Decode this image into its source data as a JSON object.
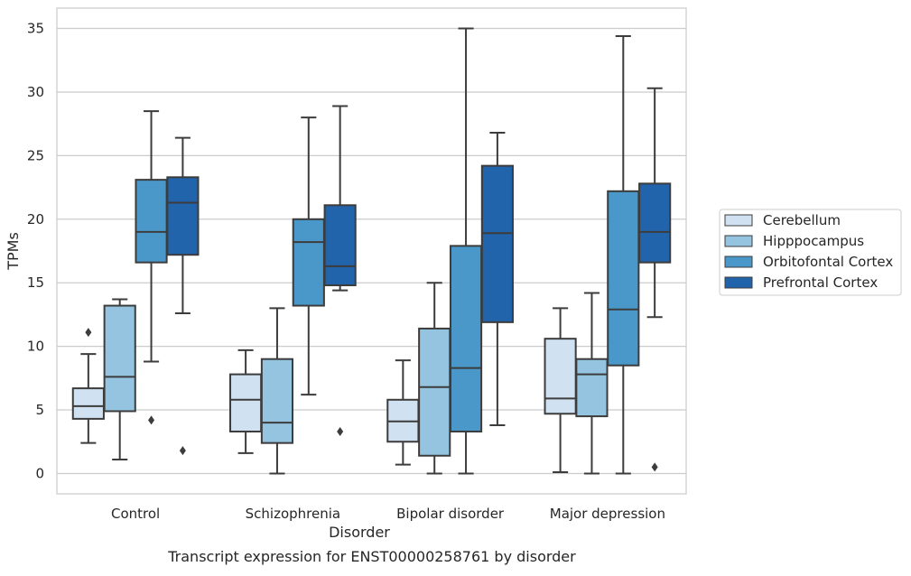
{
  "chart_data": {
    "type": "box",
    "caption": "Transcript expression for ENST00000258761 by disorder",
    "xlabel": "Disorder",
    "ylabel": "TPMs",
    "ylim": [
      -1.6,
      36.6
    ],
    "yticks": [
      0,
      5,
      10,
      15,
      20,
      25,
      30,
      35
    ],
    "grid": "horizontal",
    "legend_position": "right",
    "categories": [
      "Control",
      "Schizophrenia",
      "Bipolar disorder",
      "Major depression"
    ],
    "series": [
      {
        "name": "Cerebellum",
        "color": "#d0e1f2",
        "boxes": [
          {
            "whislo": 2.4,
            "q1": 4.3,
            "med": 5.3,
            "q3": 6.7,
            "whishi": 9.4,
            "fliers": [
              11.1
            ]
          },
          {
            "whislo": 1.6,
            "q1": 3.3,
            "med": 5.8,
            "q3": 7.8,
            "whishi": 9.7,
            "fliers": []
          },
          {
            "whislo": 0.7,
            "q1": 2.5,
            "med": 4.1,
            "q3": 5.8,
            "whishi": 8.9,
            "fliers": []
          },
          {
            "whislo": 0.1,
            "q1": 4.7,
            "med": 5.9,
            "q3": 10.6,
            "whishi": 13.0,
            "fliers": []
          }
        ]
      },
      {
        "name": "Hipppocampus",
        "color": "#94c4df",
        "boxes": [
          {
            "whislo": 1.1,
            "q1": 4.9,
            "med": 7.6,
            "q3": 13.2,
            "whishi": 13.7,
            "fliers": []
          },
          {
            "whislo": 0.0,
            "q1": 2.4,
            "med": 4.0,
            "q3": 9.0,
            "whishi": 13.0,
            "fliers": []
          },
          {
            "whislo": 0.0,
            "q1": 1.4,
            "med": 6.8,
            "q3": 11.4,
            "whishi": 15.0,
            "fliers": []
          },
          {
            "whislo": 0.0,
            "q1": 4.5,
            "med": 7.8,
            "q3": 9.0,
            "whishi": 14.2,
            "fliers": []
          }
        ]
      },
      {
        "name": "Orbitofontal Cortex",
        "color": "#4a98c9",
        "boxes": [
          {
            "whislo": 8.8,
            "q1": 16.6,
            "med": 19.0,
            "q3": 23.1,
            "whishi": 28.5,
            "fliers": [
              4.2
            ]
          },
          {
            "whislo": 6.2,
            "q1": 13.2,
            "med": 18.2,
            "q3": 20.0,
            "whishi": 28.0,
            "fliers": []
          },
          {
            "whislo": 0.0,
            "q1": 3.3,
            "med": 8.3,
            "q3": 17.9,
            "whishi": 35.0,
            "fliers": []
          },
          {
            "whislo": 0.0,
            "q1": 8.5,
            "med": 12.9,
            "q3": 22.2,
            "whishi": 34.4,
            "fliers": []
          }
        ]
      },
      {
        "name": "Prefrontal Cortex",
        "color": "#2264ab",
        "boxes": [
          {
            "whislo": 12.6,
            "q1": 17.2,
            "med": 21.3,
            "q3": 23.3,
            "whishi": 26.4,
            "fliers": [
              1.8
            ]
          },
          {
            "whislo": 14.4,
            "q1": 14.8,
            "med": 16.3,
            "q3": 21.1,
            "whishi": 28.9,
            "fliers": [
              3.3
            ]
          },
          {
            "whislo": 3.8,
            "q1": 11.9,
            "med": 18.9,
            "q3": 24.2,
            "whishi": 26.8,
            "fliers": []
          },
          {
            "whislo": 12.3,
            "q1": 16.6,
            "med": 19.0,
            "q3": 22.8,
            "whishi": 30.3,
            "fliers": [
              0.5
            ]
          }
        ]
      }
    ]
  }
}
